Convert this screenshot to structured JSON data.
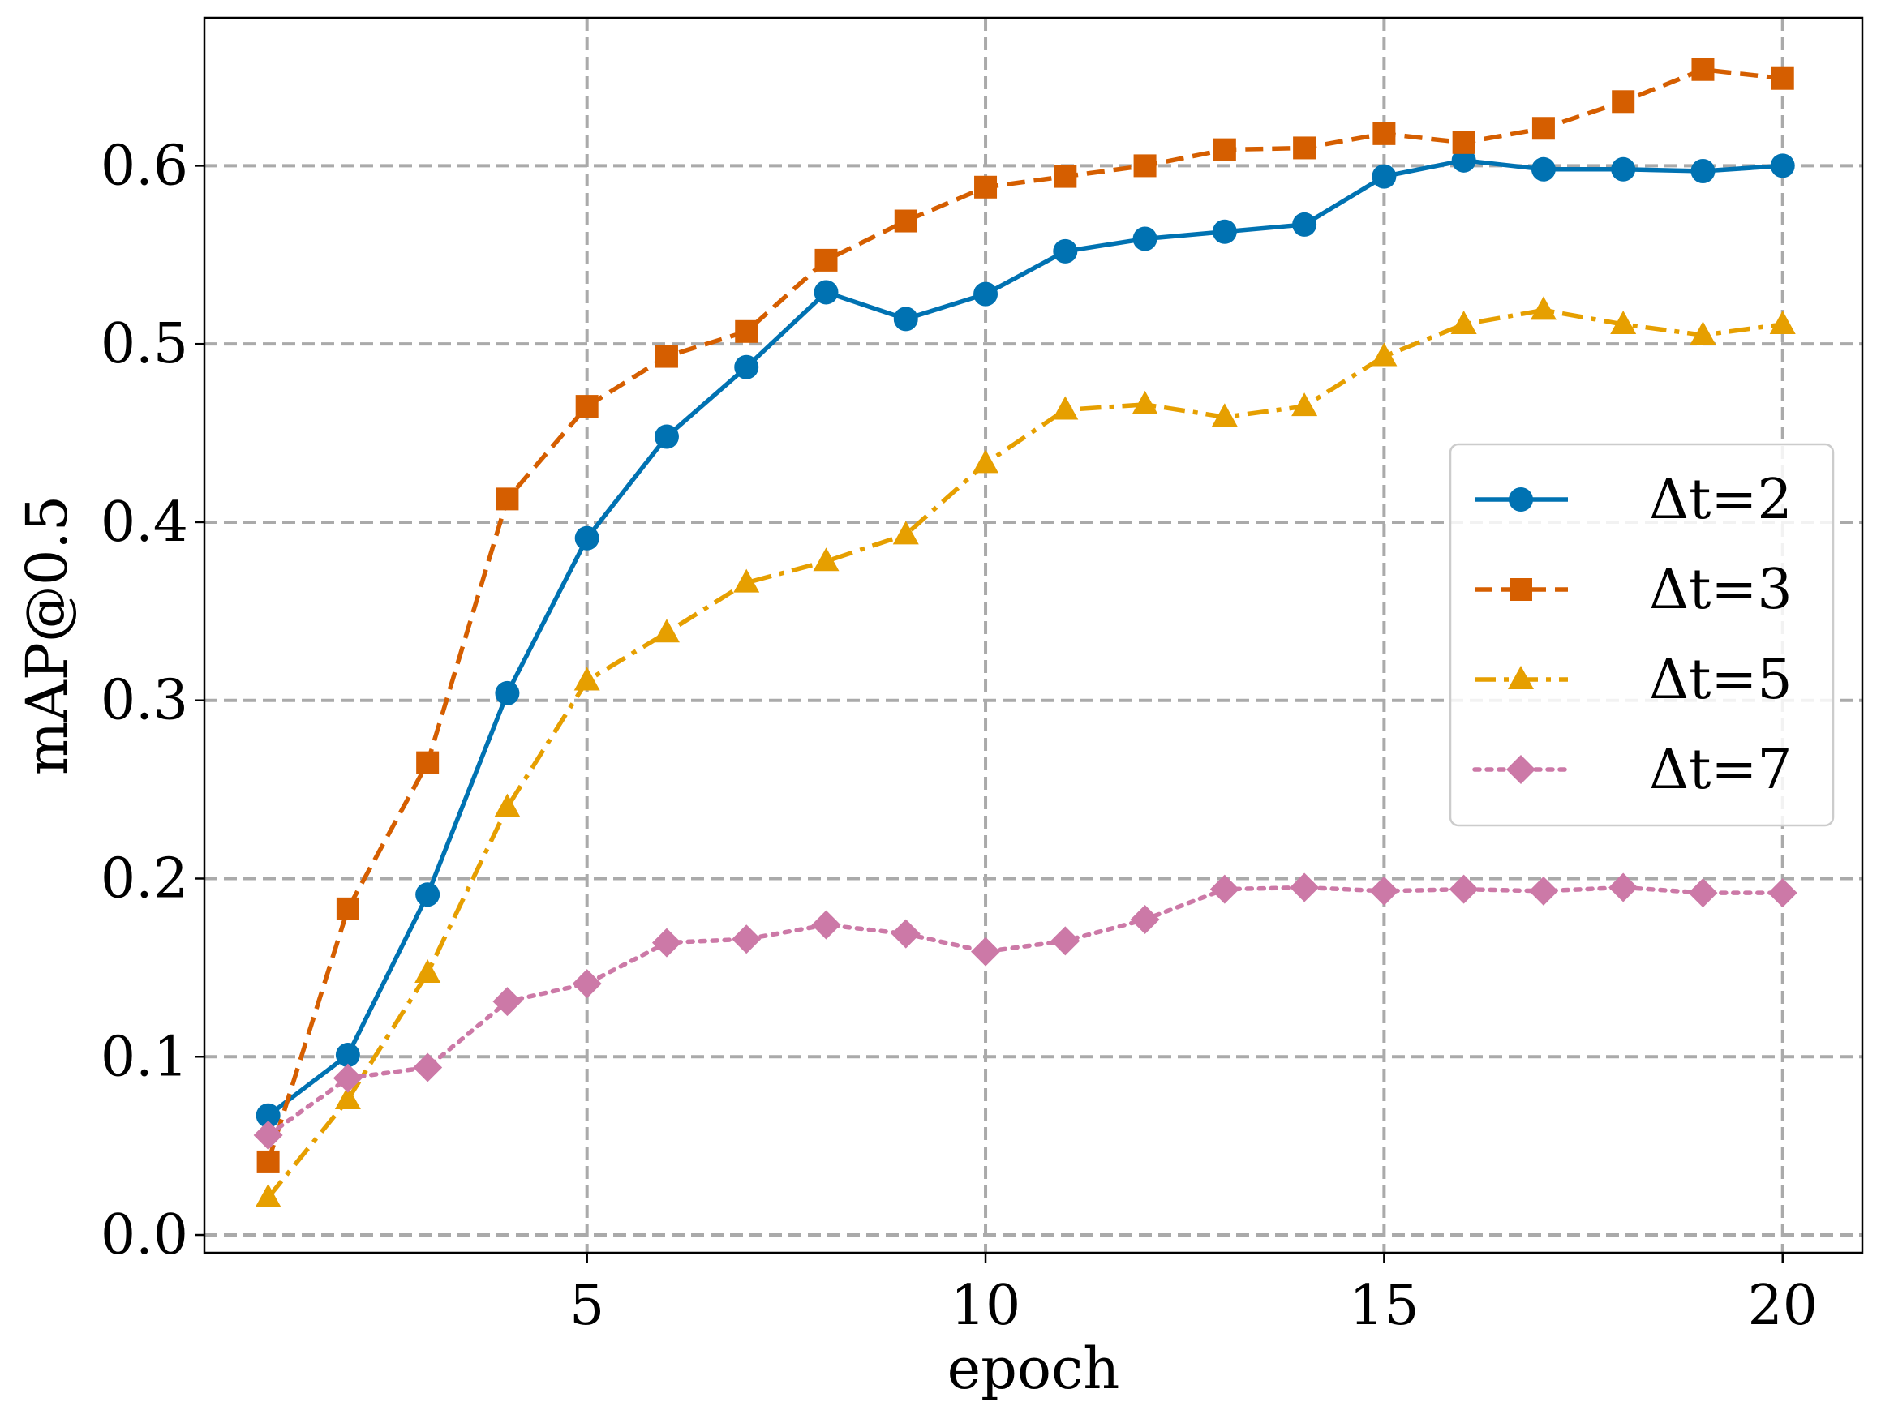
{
  "chart_data": {
    "type": "line",
    "title": "",
    "xlabel": "epoch",
    "ylabel": "mAP@0.5",
    "xlim": [
      0.2,
      21.0
    ],
    "ylim": [
      -0.01,
      0.683
    ],
    "xticks": [
      5,
      10,
      15,
      20
    ],
    "yticks": [
      0.0,
      0.1,
      0.2,
      0.3,
      0.4,
      0.5,
      0.6
    ],
    "xtick_labels": [
      "5",
      "10",
      "15",
      "20"
    ],
    "ytick_labels": [
      "0.0",
      "0.1",
      "0.2",
      "0.3",
      "0.4",
      "0.5",
      "0.6"
    ],
    "grid": true,
    "legend_position": "center-right",
    "x": [
      1,
      2,
      3,
      4,
      5,
      6,
      7,
      8,
      9,
      10,
      11,
      12,
      13,
      14,
      15,
      16,
      17,
      18,
      19,
      20
    ],
    "series": [
      {
        "name": "Δt=2",
        "color": "#0072b2",
        "marker": "circle",
        "linestyle": "solid",
        "values": [
          0.067,
          0.101,
          0.191,
          0.304,
          0.391,
          0.448,
          0.487,
          0.529,
          0.514,
          0.528,
          0.552,
          0.559,
          0.563,
          0.567,
          0.594,
          0.603,
          0.598,
          0.598,
          0.597,
          0.6
        ]
      },
      {
        "name": "Δt=3",
        "color": "#d55e00",
        "marker": "square",
        "linestyle": "dashed",
        "values": [
          0.041,
          0.183,
          0.265,
          0.413,
          0.465,
          0.493,
          0.507,
          0.547,
          0.569,
          0.588,
          0.594,
          0.6,
          0.609,
          0.61,
          0.618,
          0.613,
          0.621,
          0.636,
          0.654,
          0.649
        ]
      },
      {
        "name": "Δt=5",
        "color": "#e69f00",
        "marker": "triangle",
        "linestyle": "dashdot",
        "values": [
          0.021,
          0.076,
          0.147,
          0.24,
          0.311,
          0.338,
          0.366,
          0.378,
          0.393,
          0.433,
          0.463,
          0.466,
          0.459,
          0.465,
          0.493,
          0.511,
          0.519,
          0.511,
          0.505,
          0.511
        ]
      },
      {
        "name": "Δt=7",
        "color": "#cc79a7",
        "marker": "diamond",
        "linestyle": "dotted",
        "values": [
          0.056,
          0.088,
          0.094,
          0.131,
          0.141,
          0.164,
          0.166,
          0.174,
          0.169,
          0.159,
          0.165,
          0.177,
          0.194,
          0.195,
          0.193,
          0.194,
          0.193,
          0.195,
          0.192,
          0.192
        ]
      }
    ]
  }
}
